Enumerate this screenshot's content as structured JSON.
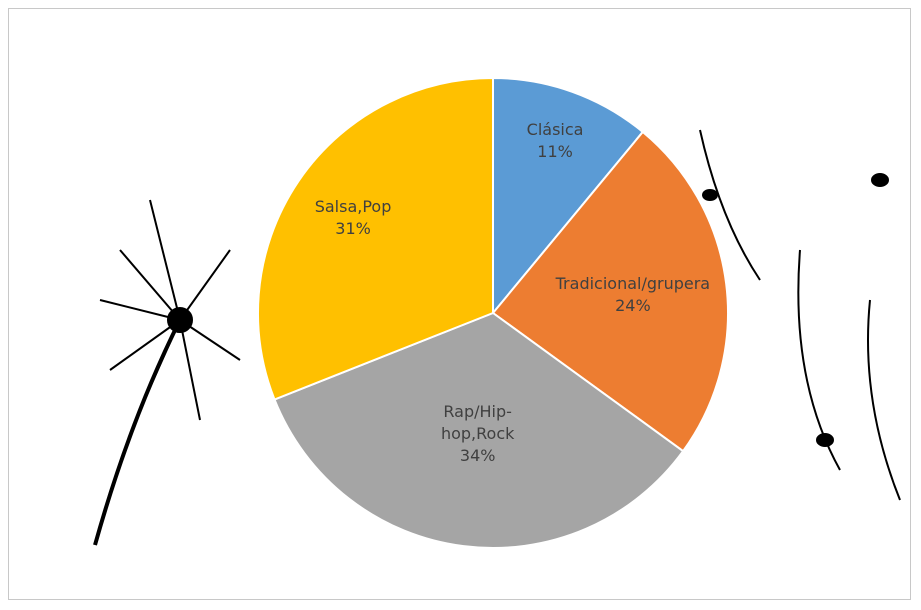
{
  "chart_data": {
    "type": "pie",
    "categories": [
      "Clásica",
      "Tradicional/grupera",
      "Rap/Hip-hop,Rock",
      "Salsa,Pop"
    ],
    "values": [
      11,
      24,
      34,
      31
    ],
    "value_labels": [
      "11%",
      "24%",
      "34%",
      "31%"
    ],
    "colors": [
      "#5b9bd5",
      "#ed7d31",
      "#a5a5a5",
      "#ffc000"
    ]
  }
}
